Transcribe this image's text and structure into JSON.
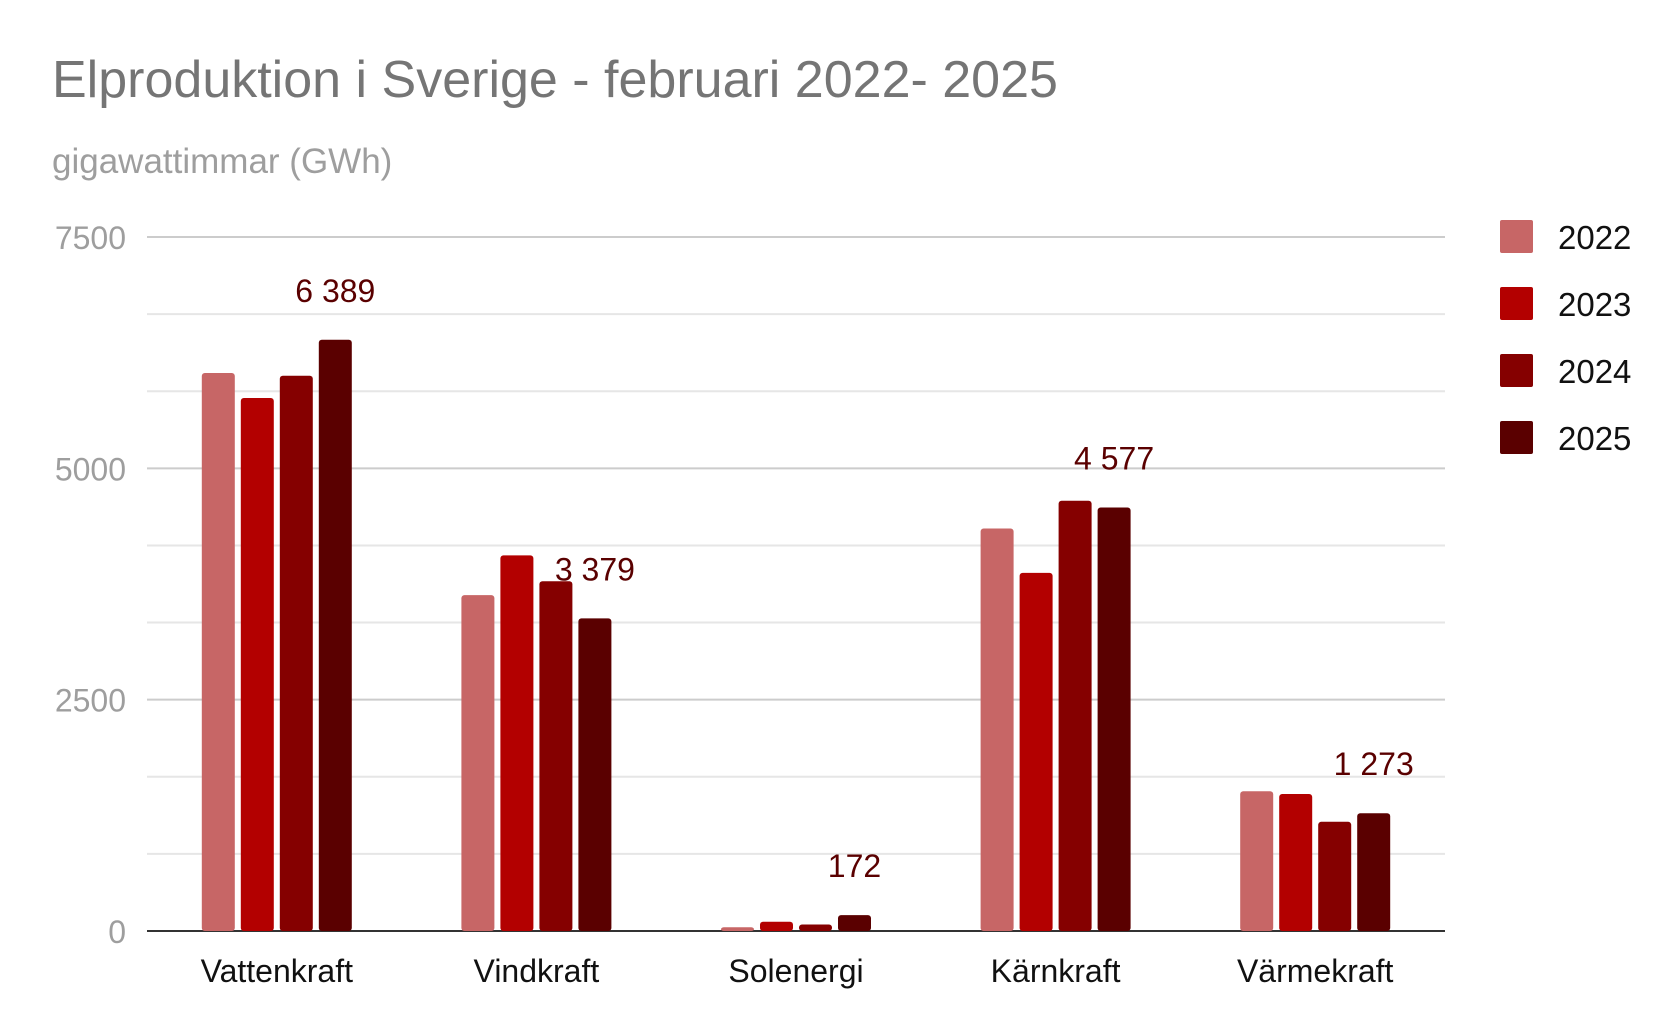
{
  "chart_data": {
    "type": "bar",
    "title": "Elproduktion i Sverige - februari 2022- 2025",
    "subtitle": "gigawattimmar (GWh)",
    "xlabel": "",
    "ylabel": "",
    "ylim": [
      0,
      7500
    ],
    "yticks": [
      0,
      2500,
      5000,
      7500
    ],
    "ytick_labels": [
      "0",
      "2500",
      "5000",
      "7500"
    ],
    "minor_gridlines": true,
    "legend_position": "right",
    "categories": [
      "Vattenkraft",
      "Vindkraft",
      "Solenergi",
      "Kärnkraft",
      "Värmekraft"
    ],
    "series": [
      {
        "name": "2022",
        "color": "#c76666",
        "values": [
          6030,
          3630,
          40,
          4350,
          1510
        ]
      },
      {
        "name": "2023",
        "color": "#b30000",
        "values": [
          5760,
          4060,
          100,
          3870,
          1480
        ]
      },
      {
        "name": "2024",
        "color": "#850000",
        "values": [
          6000,
          3780,
          70,
          4650,
          1180
        ]
      },
      {
        "name": "2025",
        "color": "#5a0000",
        "values": [
          6389,
          3379,
          172,
          4577,
          1273
        ]
      }
    ],
    "data_labels": [
      {
        "category": "Vattenkraft",
        "series": "2025",
        "text": "6 389"
      },
      {
        "category": "Vindkraft",
        "series": "2025",
        "text": "3 379"
      },
      {
        "category": "Solenergi",
        "series": "2025",
        "text": "172"
      },
      {
        "category": "Kärnkraft",
        "series": "2025",
        "text": "4 577"
      },
      {
        "category": "Värmekraft",
        "series": "2025",
        "text": "1 273"
      }
    ],
    "data_label_color": "#5a0000"
  }
}
